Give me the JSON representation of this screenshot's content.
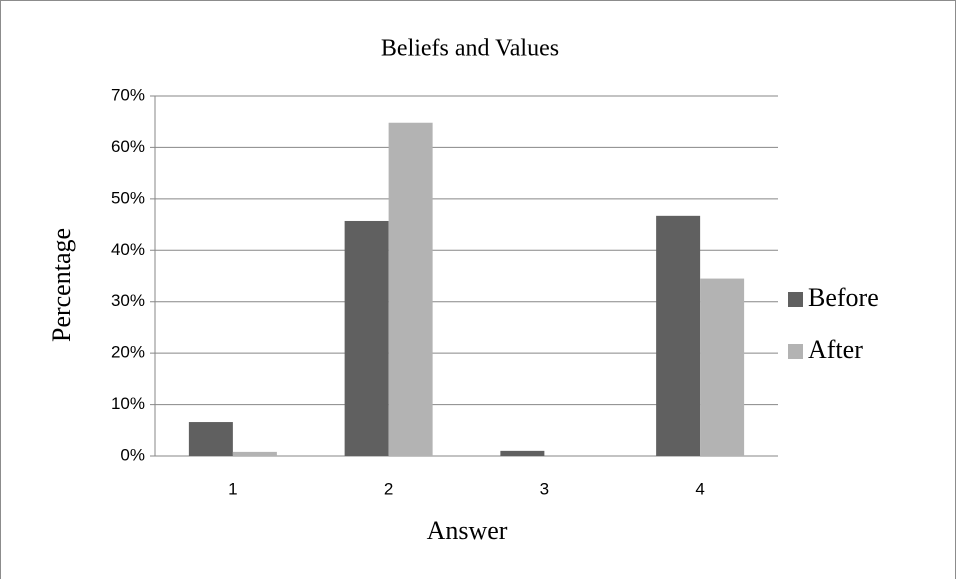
{
  "chart_data": {
    "type": "bar",
    "title": "Beliefs and Values",
    "x_label": "Answer",
    "y_label": "Percentage",
    "categories": [
      "1",
      "2",
      "3",
      "4"
    ],
    "series": [
      {
        "name": "Before",
        "color": "#606060",
        "values": [
          6.6,
          45.7,
          1.0,
          46.7
        ]
      },
      {
        "name": "After",
        "color": "#b3b3b3",
        "values": [
          0.8,
          64.8,
          0,
          34.5
        ]
      }
    ],
    "ylim": [
      0,
      70
    ],
    "yticks": [
      {
        "value": 0,
        "label": "0%"
      },
      {
        "value": 10,
        "label": "10%"
      },
      {
        "value": 20,
        "label": "20%"
      },
      {
        "value": 30,
        "label": "30%"
      },
      {
        "value": 40,
        "label": "40%"
      },
      {
        "value": 50,
        "label": "50%"
      },
      {
        "value": 60,
        "label": "60%"
      },
      {
        "value": 70,
        "label": "70%"
      }
    ],
    "grid": true,
    "legend": "right"
  }
}
